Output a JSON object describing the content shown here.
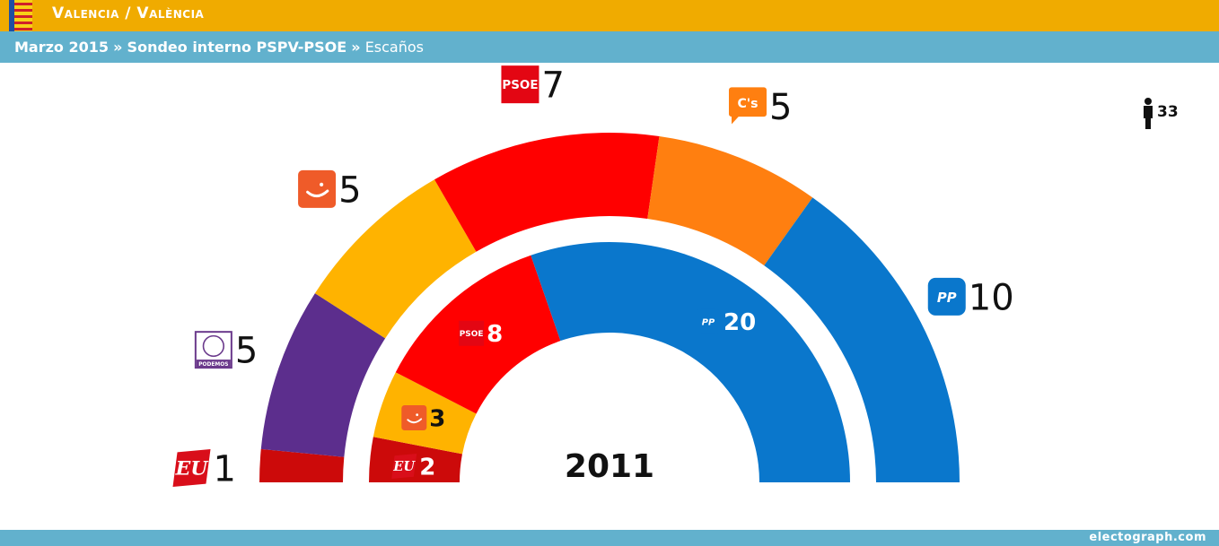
{
  "header": {
    "region": "Valencia / València",
    "date": "Marzo 2015",
    "separator": "»",
    "poll": "Sondeo interno PSPV-PSOE",
    "metric": "Escaños"
  },
  "footer": {
    "credit": "electograph.com"
  },
  "total_seats": "33",
  "colors": {
    "header_bar": "#f0ab00",
    "sub_bar": "#62b1cd",
    "EU": "#cc0a0a",
    "Podemos": "#5c2e8d",
    "Compromis": "#ffb300",
    "PSOE": "#ff0000",
    "Cs": "#ff7f10",
    "PP": "#0a77cc"
  },
  "chart_data": [
    {
      "type": "pie",
      "subtype": "parliament-hemicycle",
      "ring": "outer",
      "categories": [
        "EU",
        "Podemos",
        "Compromís",
        "PSOE",
        "C's",
        "PP"
      ],
      "values": [
        1,
        5,
        5,
        7,
        5,
        10
      ],
      "labels": [
        "1",
        "5",
        "5",
        "7",
        "5",
        "10"
      ],
      "logo_text": [
        "EU",
        "PODEMOS",
        "",
        "PSOE",
        "C's",
        "PP"
      ],
      "colors": [
        "#cc0a0a",
        "#5c2e8d",
        "#ffb300",
        "#ff0000",
        "#ff7f10",
        "#0a77cc"
      ]
    },
    {
      "type": "pie",
      "subtype": "parliament-hemicycle",
      "ring": "inner",
      "title": "2011",
      "categories": [
        "EU",
        "Compromís",
        "PSOE",
        "PP"
      ],
      "values": [
        2,
        3,
        8,
        20
      ],
      "labels": [
        "2",
        "3",
        "8",
        "20"
      ],
      "logo_text": [
        "EU",
        "",
        "PSOE",
        "PP"
      ],
      "colors": [
        "#cc0a0a",
        "#ffb300",
        "#ff0000",
        "#0a77cc"
      ]
    }
  ]
}
